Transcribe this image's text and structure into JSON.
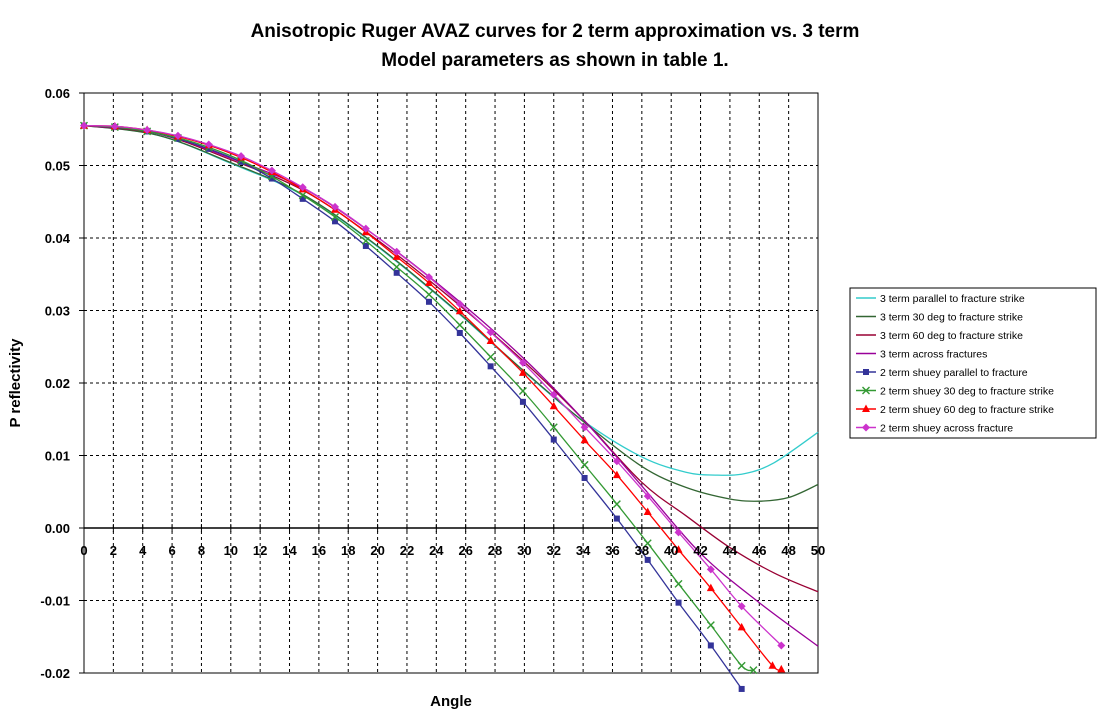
{
  "chart_data": {
    "type": "line",
    "title": [
      "Anisotropic Ruger AVAZ curves for 2  term approximation vs. 3 term",
      "Model parameters as shown in table 1."
    ],
    "xlabel": "Angle",
    "ylabel": "P reflectivity",
    "xlim": [
      0,
      50
    ],
    "ylim": [
      -0.02,
      0.06
    ],
    "x_ticks": [
      "0",
      "2",
      "4",
      "6",
      "8",
      "10",
      "12",
      "14",
      "16",
      "18",
      "20",
      "22",
      "24",
      "26",
      "28",
      "30",
      "32",
      "34",
      "36",
      "38",
      "40",
      "42",
      "44",
      "46",
      "48",
      "50"
    ],
    "y_ticks": [
      "0.06",
      "0.05",
      "0.04",
      "0.03",
      "0.02",
      "0.01",
      "0.00",
      "-0.01",
      "-0.02"
    ],
    "grid": true,
    "legend_position": "right",
    "series": [
      {
        "name": "3 term parallel to fracture strike",
        "color": "#33CCCC",
        "marker": "none",
        "x": [
          0,
          5,
          10,
          15,
          20,
          25,
          30,
          34,
          38,
          41,
          43,
          45,
          47,
          50
        ],
        "y": [
          0.0555,
          0.0542,
          0.0503,
          0.0458,
          0.0388,
          0.0305,
          0.0215,
          0.0148,
          0.0098,
          0.0077,
          0.0073,
          0.0075,
          0.009,
          0.0132
        ]
      },
      {
        "name": "3 term 30 deg to fracture strike",
        "color": "#336633",
        "marker": "none",
        "x": [
          0,
          5,
          10,
          15,
          20,
          25,
          30,
          34,
          38,
          41,
          44,
          46,
          48,
          50
        ],
        "y": [
          0.0555,
          0.0542,
          0.0504,
          0.0459,
          0.0389,
          0.0306,
          0.0216,
          0.0147,
          0.0085,
          0.0056,
          0.004,
          0.0037,
          0.0042,
          0.006
        ]
      },
      {
        "name": "3 term 60 deg to fracture strike",
        "color": "#990033",
        "marker": "none",
        "x": [
          0,
          5,
          10,
          15,
          20,
          25,
          30,
          34,
          38,
          41,
          44,
          47,
          50
        ],
        "y": [
          0.0555,
          0.0544,
          0.0508,
          0.0465,
          0.0397,
          0.0317,
          0.0229,
          0.015,
          0.0063,
          0.0017,
          -0.0027,
          -0.0062,
          -0.0088
        ]
      },
      {
        "name": "3 term across fractures",
        "color": "#990099",
        "marker": "none",
        "x": [
          0,
          5,
          10,
          15,
          20,
          25,
          30,
          34,
          38,
          42,
          46,
          50
        ],
        "y": [
          0.0555,
          0.0545,
          0.051,
          0.0468,
          0.0401,
          0.0322,
          0.0233,
          0.015,
          0.0058,
          -0.0035,
          -0.0103,
          -0.0163
        ]
      },
      {
        "name": "2 term shuey parallel to fracture",
        "color": "#333399",
        "marker": "square",
        "x": [
          0,
          2.1,
          4.3,
          6.4,
          8.5,
          10.7,
          12.8,
          14.9,
          17.1,
          19.2,
          21.3,
          23.5,
          25.6,
          27.7,
          29.9,
          32,
          34.1,
          36.3,
          38.4,
          40.5,
          42.7,
          44.8
        ],
        "y": [
          0.0555,
          0.0553,
          0.0547,
          0.0537,
          0.0523,
          0.0505,
          0.0482,
          0.0454,
          0.0423,
          0.0389,
          0.0352,
          0.0312,
          0.0269,
          0.0223,
          0.0174,
          0.0122,
          0.0069,
          0.0013,
          -0.0044,
          -0.0103,
          -0.0162,
          -0.0222
        ]
      },
      {
        "name": "2 term shuey 30 deg to fracture strike",
        "color": "#339933",
        "marker": "x",
        "x": [
          0,
          2.1,
          4.3,
          6.4,
          8.5,
          10.7,
          12.8,
          14.9,
          17.1,
          19.2,
          21.3,
          23.5,
          25.6,
          27.7,
          29.9,
          32,
          34.1,
          36.3,
          38.4,
          40.5,
          42.7,
          44.8,
          45.6
        ],
        "y": [
          0.0555,
          0.0553,
          0.0547,
          0.0538,
          0.0525,
          0.0507,
          0.0485,
          0.0459,
          0.0429,
          0.0396,
          0.036,
          0.0322,
          0.028,
          0.0236,
          0.0189,
          0.0139,
          0.0087,
          0.0033,
          -0.0021,
          -0.0077,
          -0.0134,
          -0.019,
          -0.0196
        ]
      },
      {
        "name": "2 term shuey 60 deg to fracture strike",
        "color": "#FF0000",
        "marker": "triangle",
        "x": [
          0,
          2.1,
          4.3,
          6.4,
          8.5,
          10.7,
          12.8,
          14.9,
          17.1,
          19.2,
          21.3,
          23.5,
          25.6,
          27.7,
          29.9,
          32,
          34.1,
          36.3,
          38.4,
          40.5,
          42.7,
          44.8,
          46.9,
          47.5
        ],
        "y": [
          0.0555,
          0.0554,
          0.0549,
          0.054,
          0.0528,
          0.0511,
          0.0491,
          0.0467,
          0.0439,
          0.0408,
          0.0374,
          0.0338,
          0.0299,
          0.0258,
          0.0214,
          0.0168,
          0.0121,
          0.0073,
          0.0022,
          -0.003,
          -0.0083,
          -0.0137,
          -0.019,
          -0.0195
        ]
      },
      {
        "name": "2 term shuey across fracture",
        "color": "#CC33CC",
        "marker": "diamond",
        "x": [
          0,
          2.1,
          4.3,
          6.4,
          8.5,
          10.7,
          12.8,
          14.9,
          17.1,
          19.2,
          21.3,
          23.5,
          25.6,
          27.7,
          29.9,
          32,
          34.1,
          36.3,
          38.4,
          40.5,
          42.7,
          44.8,
          47.5
        ],
        "y": [
          0.0555,
          0.0554,
          0.0549,
          0.0541,
          0.0529,
          0.0513,
          0.0493,
          0.047,
          0.0443,
          0.0413,
          0.0381,
          0.0346,
          0.0309,
          0.027,
          0.0228,
          0.0184,
          0.0139,
          0.0092,
          0.0044,
          -0.0006,
          -0.0057,
          -0.0108,
          -0.0162
        ]
      }
    ]
  }
}
